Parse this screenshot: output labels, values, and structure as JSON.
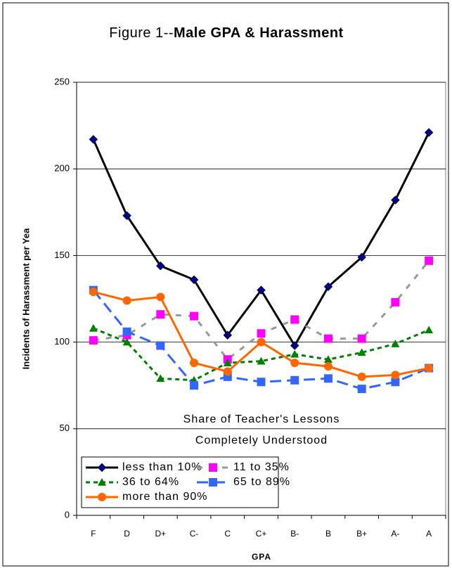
{
  "chart_data": {
    "type": "line",
    "title_parts": [
      "Figure 1--",
      "Male GPA & Harassment"
    ],
    "x_label": "GPA",
    "y_label": "Incidents of Harassment per Yea",
    "annotation": [
      "Share of Teacher's Lessons",
      "Completely Understood"
    ],
    "categories": [
      "F",
      "D",
      "D+",
      "C-",
      "C",
      "C+",
      "B-",
      "B",
      "B+",
      "A-",
      "A"
    ],
    "ylim": [
      0,
      250
    ],
    "yticks": [
      0,
      50,
      100,
      150,
      200,
      250
    ],
    "grid": true,
    "series": [
      {
        "name": "less than 10%",
        "color": "#000080",
        "line_color": "#000000",
        "marker": "diamond",
        "dash": "solid",
        "values": [
          217,
          173,
          144,
          136,
          104,
          130,
          98,
          132,
          149,
          182,
          221
        ]
      },
      {
        "name": "11 to 35%",
        "color": "#ff00ff",
        "line_color": "#999999",
        "marker": "square",
        "dash": "dashed",
        "values": [
          101,
          104,
          116,
          115,
          90,
          105,
          113,
          102,
          102,
          123,
          147
        ]
      },
      {
        "name": "36 to 64%",
        "color": "#008000",
        "line_color": "#008000",
        "marker": "triangle",
        "dash": "dotted",
        "values": [
          108,
          100,
          79,
          78,
          88,
          89,
          93,
          90,
          94,
          99,
          107
        ]
      },
      {
        "name": "65 to 89%",
        "color": "#3366ff",
        "line_color": "#3366ff",
        "marker": "square",
        "dash": "longdash",
        "values": [
          130,
          106,
          98,
          75,
          80,
          77,
          78,
          79,
          73,
          77,
          85
        ]
      },
      {
        "name": "more than 90%",
        "color": "#ff6600",
        "line_color": "#ff6600",
        "marker": "circle",
        "dash": "solid",
        "values": [
          129,
          124,
          126,
          88,
          83,
          100,
          88,
          86,
          80,
          81,
          85
        ]
      }
    ]
  }
}
